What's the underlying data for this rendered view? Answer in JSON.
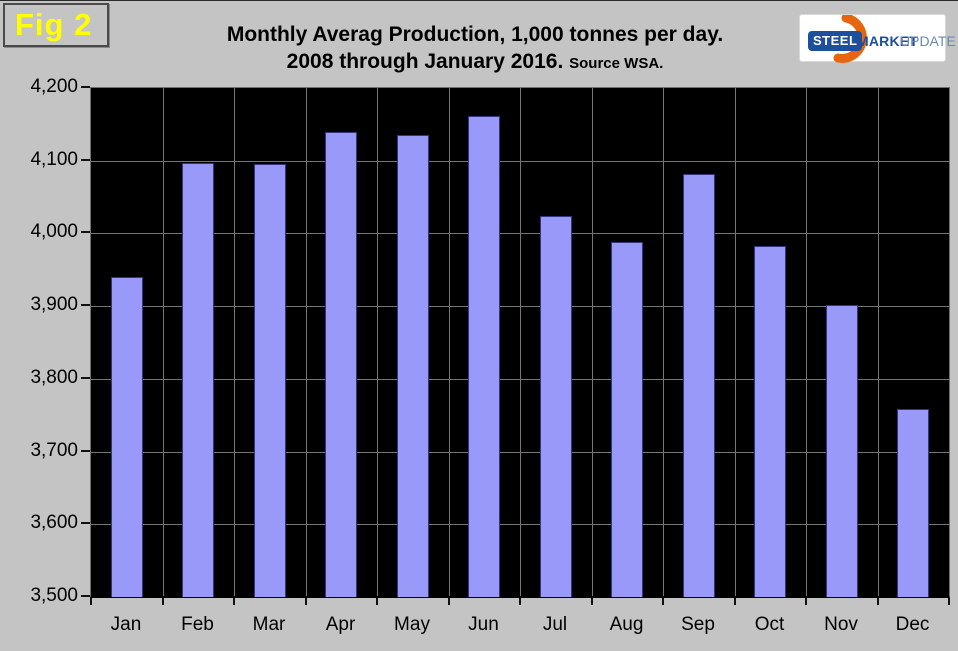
{
  "figure_label": "Fig 2",
  "title": {
    "line1": "Monthly Averag Production, 1,000 tonnes per day.",
    "line2": "2008 through January 2016.",
    "source": "Source WSA."
  },
  "logo": {
    "steel": "STEEL",
    "market": "MARKET",
    "update": "UPDATE"
  },
  "colors": {
    "page_background": "#c4c4c4",
    "plot_background": "#000000",
    "gridline": "#757575",
    "bar_fill": "#9999fa",
    "bar_border": "#35357d",
    "fig_label_text": "#ffff00",
    "logo_blue": "#1c4f9c",
    "logo_update_blue": "#6d88b5",
    "logo_crescent_orange": "#e8650f",
    "axis_text": "#000000"
  },
  "chart_data": {
    "type": "bar",
    "title": "Monthly Averag Production, 1,000 tonnes per day. 2008 through January 2016. Source WSA.",
    "categories": [
      "Jan",
      "Feb",
      "Mar",
      "Apr",
      "May",
      "Jun",
      "Jul",
      "Aug",
      "Sep",
      "Oct",
      "Nov",
      "Dec"
    ],
    "values": [
      3940,
      4097,
      4095,
      4139,
      4135,
      4162,
      4024,
      3988,
      4082,
      3983,
      3901,
      3758
    ],
    "xlabel": "",
    "ylabel": "",
    "ylim": [
      3500,
      4200
    ],
    "ytick_step": 100,
    "ytick_labels": [
      "3,500",
      "3,600",
      "3,700",
      "3,800",
      "3,900",
      "4,000",
      "4,100",
      "4,200"
    ],
    "grid": true,
    "legend": false,
    "plot_background": "black",
    "bar_color": "#9999fa"
  }
}
